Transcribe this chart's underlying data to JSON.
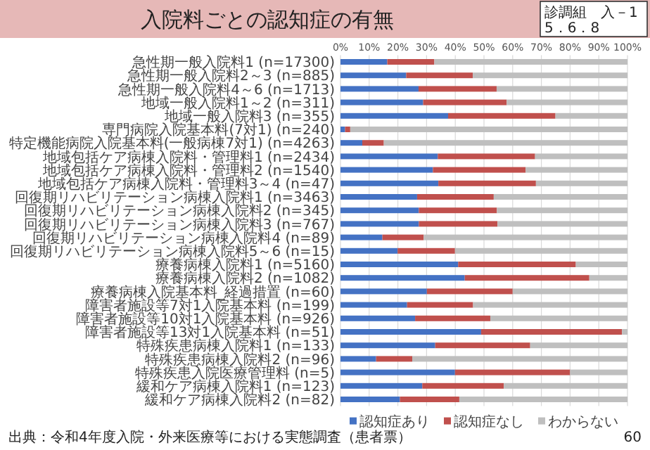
{
  "chart_data": {
    "type": "bar",
    "orientation": "horizontal",
    "stacked": true,
    "title": "入院料ごとの認知症の有無",
    "categories": [
      "急性期一般入院料1 (n=17300)",
      "急性期一般入院料2～3 (n=885)",
      "急性期一般入院料4～6 (n=1713)",
      "地域一般入院料1～2 (n=311)",
      "地域一般入院料3 (n=355)",
      "専門病院入院基本料(7対1) (n=240)",
      "特定機能病院入院基本料(一般病棟7対1) (n=4263)",
      "地域包括ケア病棟入院料・管理料1 (n=2434)",
      "地域包括ケア病棟入院料・管理料2 (n=1540)",
      "地域包括ケア病棟入院料・管理料3～4 (n=47)",
      "回復期リハビリテーション病棟入院料1 (n=3463)",
      "回復期リハビリテーション病棟入院料2 (n=345)",
      "回復期リハビリテーション病棟入院料3 (n=767)",
      "回復期リハビリテーション病棟入院料4 (n=89)",
      "回復期リハビリテーション病棟入院料5～6 (n=15)",
      "療養病棟入院料1 (n=5160)",
      "療養病棟入院料2 (n=1082)",
      "療養病棟入院基本料_経過措置 (n=60)",
      "障害者施設等7対1入院基本料 (n=199)",
      "障害者施設等10対1入院基本料 (n=926)",
      "障害者施設等13対1入院基本料 (n=51)",
      "特殊疾患病棟入院料1 (n=133)",
      "特殊疾患病棟入院料2 (n=96)",
      "特殊疾患入院医療管理料 (n=5)",
      "緩和ケア病棟入院料1 (n=123)",
      "緩和ケア病棟入院料2 (n=82)"
    ],
    "series": [
      {
        "name": "認知症あり",
        "color": "#4472c4",
        "values": [
          16.3,
          22.9,
          27.2,
          28.8,
          37.5,
          1.6,
          7.6,
          33.9,
          32.2,
          34.1,
          26.7,
          27.3,
          27.3,
          14.6,
          19.9,
          41.0,
          43.3,
          30.1,
          23.2,
          26.0,
          49.0,
          33.0,
          12.4,
          39.9,
          28.5,
          20.7
        ]
      },
      {
        "name": "認知症なし",
        "color": "#c0504d",
        "values": [
          16.4,
          23.2,
          27.2,
          29.1,
          37.4,
          1.8,
          7.5,
          33.9,
          32.3,
          34.0,
          26.7,
          27.2,
          27.4,
          14.4,
          20.0,
          41.0,
          43.4,
          29.9,
          23.0,
          26.2,
          49.1,
          33.1,
          12.6,
          40.1,
          28.4,
          20.7
        ]
      },
      {
        "name": "わからない",
        "color": "#bfbfbf",
        "values": [
          67.3,
          53.9,
          45.6,
          42.1,
          25.1,
          96.6,
          84.9,
          32.2,
          35.5,
          31.9,
          46.6,
          45.5,
          45.3,
          71.0,
          60.1,
          18.0,
          13.3,
          40.0,
          53.8,
          47.8,
          1.9,
          33.9,
          75.0,
          20.0,
          43.1,
          58.6
        ]
      }
    ],
    "xlim": [
      0,
      100
    ],
    "xticks": [
      {
        "value": 0,
        "label": "0%"
      },
      {
        "value": 10,
        "label": "10%"
      },
      {
        "value": 20,
        "label": "20%"
      },
      {
        "value": 30,
        "label": "30%"
      },
      {
        "value": 40,
        "label": "40%"
      },
      {
        "value": 50,
        "label": "50%"
      },
      {
        "value": 60,
        "label": "60%"
      },
      {
        "value": 70,
        "label": "70%"
      },
      {
        "value": 80,
        "label": "80%"
      },
      {
        "value": 90,
        "label": "90%"
      },
      {
        "value": 100,
        "label": "100%"
      }
    ],
    "grid": "x",
    "legend": "bottom",
    "annotations": [
      "診調組　入－1",
      "5．6．8",
      "出典：令和4年度入院・外来医療等における実態調査（患者票）",
      "60"
    ]
  }
}
